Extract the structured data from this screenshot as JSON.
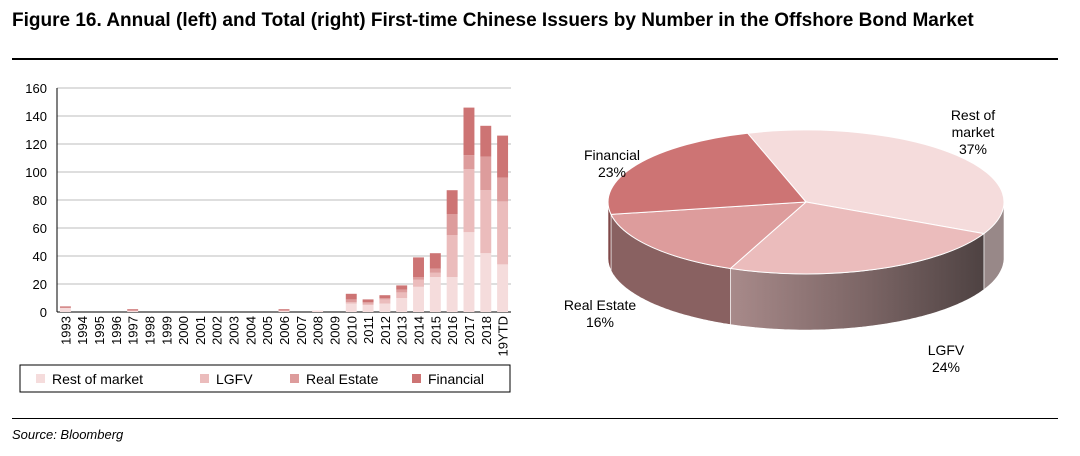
{
  "title": "Figure 16. Annual (left) and Total (right) First-time Chinese Issuers by Number in the Offshore Bond Market",
  "source": "Source: Bloomberg",
  "colors": {
    "rest_of_market": "#f5dcdc",
    "lgfv": "#ebbcbc",
    "real_estate": "#dd9c9c",
    "financial": "#cd7474",
    "grid": "#bdbdbd"
  },
  "chart_data": [
    {
      "type": "bar",
      "stacked": true,
      "categories": [
        "1993",
        "1994",
        "1995",
        "1996",
        "1997",
        "1998",
        "1999",
        "2000",
        "2001",
        "2002",
        "2003",
        "2004",
        "2005",
        "2006",
        "2007",
        "2008",
        "2009",
        "2010",
        "2011",
        "2012",
        "2013",
        "2014",
        "2015",
        "2016",
        "2017",
        "2018",
        "19YTD"
      ],
      "series": [
        {
          "name": "Rest of market",
          "values": [
            3,
            0,
            0,
            0,
            1,
            0,
            0,
            0,
            0,
            0,
            0,
            0,
            0,
            1,
            0,
            1,
            0,
            6,
            5,
            6,
            10,
            18,
            25,
            25,
            57,
            42,
            34
          ]
        },
        {
          "name": "LGFV",
          "values": [
            0,
            0,
            0,
            0,
            0,
            0,
            0,
            0,
            0,
            0,
            0,
            0,
            0,
            0,
            0,
            0,
            0,
            1,
            1,
            3,
            4,
            5,
            3,
            30,
            45,
            45,
            45
          ]
        },
        {
          "name": "Real Estate",
          "values": [
            0,
            0,
            0,
            0,
            0,
            0,
            0,
            0,
            0,
            0,
            0,
            0,
            0,
            0,
            0,
            0,
            0,
            2,
            1,
            1,
            2,
            2,
            3,
            15,
            10,
            24,
            17
          ]
        },
        {
          "name": "Financial",
          "values": [
            1,
            0,
            0,
            0,
            1,
            0,
            0,
            0,
            0,
            0,
            0,
            0,
            0,
            1,
            0,
            0,
            0,
            4,
            2,
            2,
            3,
            14,
            11,
            17,
            34,
            22,
            30
          ]
        }
      ],
      "ylim": [
        0,
        160
      ],
      "yticks": [
        0,
        20,
        40,
        60,
        80,
        100,
        120,
        140,
        160
      ],
      "grid": true,
      "legend": "bottom"
    },
    {
      "type": "pie",
      "style": "3d",
      "slices": [
        {
          "label": "Rest of market",
          "value": 37,
          "pct_label": "37%"
        },
        {
          "label": "LGFV",
          "value": 24,
          "pct_label": "24%"
        },
        {
          "label": "Real Estate",
          "value": 16,
          "pct_label": "16%"
        },
        {
          "label": "Financial",
          "value": 23,
          "pct_label": "23%"
        }
      ]
    }
  ]
}
